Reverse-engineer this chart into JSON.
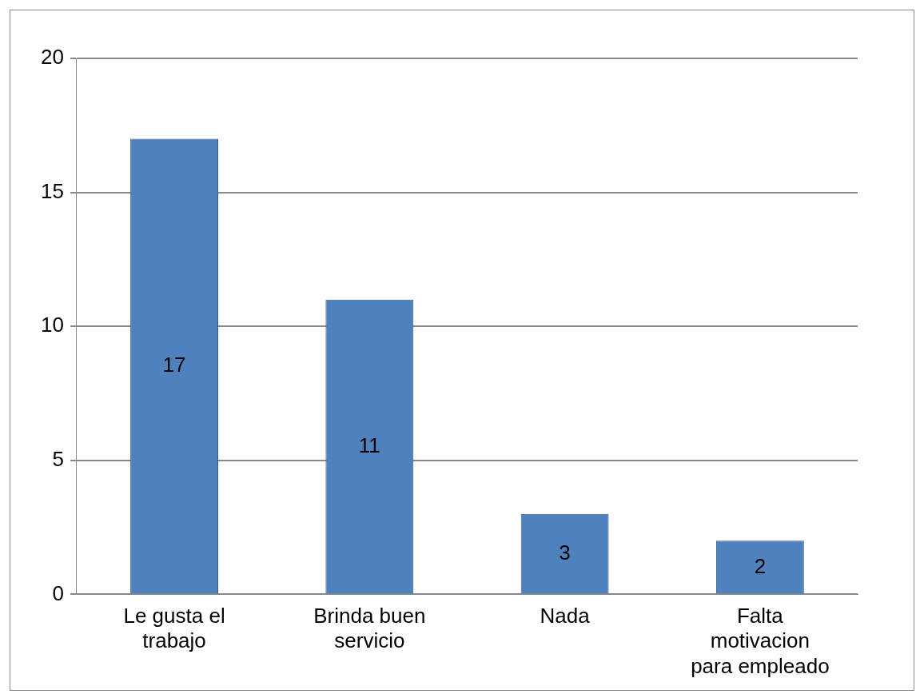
{
  "chart_data": {
    "type": "bar",
    "categories": [
      "Le gusta el trabajo",
      "Brinda buen servicio",
      "Nada",
      "Falta motivacion para empleado"
    ],
    "values": [
      17,
      11,
      3,
      2
    ],
    "color": "#4f81bd",
    "ylim": [
      0,
      20
    ],
    "yticks": [
      0,
      5,
      10,
      15,
      20
    ],
    "grid": "y",
    "data_labels": true
  }
}
